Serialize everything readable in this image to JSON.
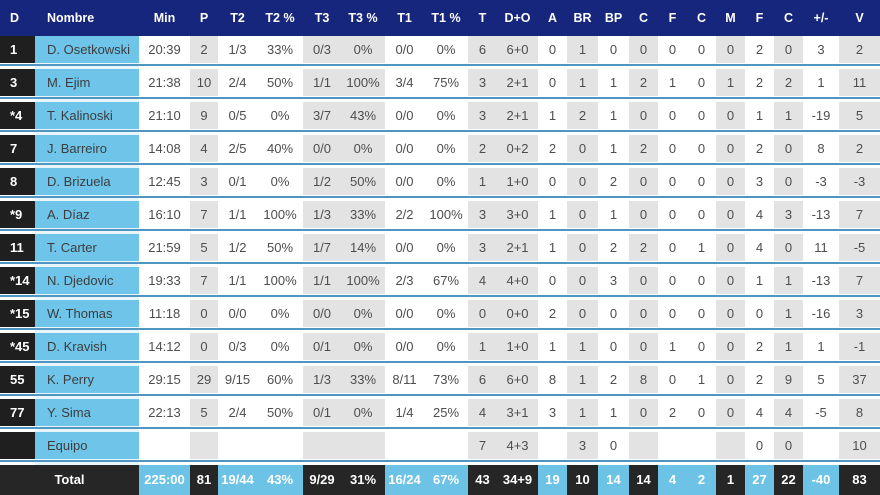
{
  "columns": [
    "D",
    "Nombre",
    "Min",
    "P",
    "T2",
    "T2 %",
    "T3",
    "T3 %",
    "T1",
    "T1 %",
    "T",
    "D+O",
    "A",
    "BR",
    "BP",
    "C",
    "F",
    "C",
    "M",
    "F",
    "C",
    "+/-",
    "V"
  ],
  "rows": [
    {
      "num": "1",
      "name": "D. Osetkowski",
      "stats": [
        "20:39",
        "2",
        "1/3",
        "33%",
        "0/3",
        "0%",
        "0/0",
        "0%",
        "6",
        "6+0",
        "0",
        "1",
        "0",
        "0",
        "0",
        "0",
        "0",
        "2",
        "0",
        "3",
        "2"
      ]
    },
    {
      "num": "3",
      "name": "M. Ejim",
      "stats": [
        "21:38",
        "10",
        "2/4",
        "50%",
        "1/1",
        "100%",
        "3/4",
        "75%",
        "3",
        "2+1",
        "0",
        "1",
        "1",
        "2",
        "1",
        "0",
        "1",
        "2",
        "2",
        "1",
        "11"
      ]
    },
    {
      "num": "*4",
      "name": "T. Kalinoski",
      "stats": [
        "21:10",
        "9",
        "0/5",
        "0%",
        "3/7",
        "43%",
        "0/0",
        "0%",
        "3",
        "2+1",
        "1",
        "2",
        "1",
        "0",
        "0",
        "0",
        "0",
        "1",
        "1",
        "-19",
        "5"
      ]
    },
    {
      "num": "7",
      "name": "J. Barreiro",
      "stats": [
        "14:08",
        "4",
        "2/5",
        "40%",
        "0/0",
        "0%",
        "0/0",
        "0%",
        "2",
        "0+2",
        "2",
        "0",
        "1",
        "2",
        "0",
        "0",
        "0",
        "2",
        "0",
        "8",
        "2"
      ]
    },
    {
      "num": "8",
      "name": "D. Brizuela",
      "stats": [
        "12:45",
        "3",
        "0/1",
        "0%",
        "1/2",
        "50%",
        "0/0",
        "0%",
        "1",
        "1+0",
        "0",
        "0",
        "2",
        "0",
        "0",
        "0",
        "0",
        "3",
        "0",
        "-3",
        "-3"
      ]
    },
    {
      "num": "*9",
      "name": "A. Díaz",
      "stats": [
        "16:10",
        "7",
        "1/1",
        "100%",
        "1/3",
        "33%",
        "2/2",
        "100%",
        "3",
        "3+0",
        "1",
        "0",
        "1",
        "0",
        "0",
        "0",
        "0",
        "4",
        "3",
        "-13",
        "7"
      ]
    },
    {
      "num": "11",
      "name": "T. Carter",
      "stats": [
        "21:59",
        "5",
        "1/2",
        "50%",
        "1/7",
        "14%",
        "0/0",
        "0%",
        "3",
        "2+1",
        "1",
        "0",
        "2",
        "2",
        "0",
        "1",
        "0",
        "4",
        "0",
        "11",
        "-5"
      ]
    },
    {
      "num": "*14",
      "name": "N. Djedovic",
      "stats": [
        "19:33",
        "7",
        "1/1",
        "100%",
        "1/1",
        "100%",
        "2/3",
        "67%",
        "4",
        "4+0",
        "0",
        "0",
        "3",
        "0",
        "0",
        "0",
        "0",
        "1",
        "1",
        "-13",
        "7"
      ]
    },
    {
      "num": "*15",
      "name": "W. Thomas",
      "stats": [
        "11:18",
        "0",
        "0/0",
        "0%",
        "0/0",
        "0%",
        "0/0",
        "0%",
        "0",
        "0+0",
        "2",
        "0",
        "0",
        "0",
        "0",
        "0",
        "0",
        "0",
        "1",
        "-16",
        "3"
      ]
    },
    {
      "num": "*45",
      "name": "D. Kravish",
      "stats": [
        "14:12",
        "0",
        "0/3",
        "0%",
        "0/1",
        "0%",
        "0/0",
        "0%",
        "1",
        "1+0",
        "1",
        "1",
        "0",
        "0",
        "1",
        "0",
        "0",
        "2",
        "1",
        "1",
        "-1"
      ]
    },
    {
      "num": "55",
      "name": "K. Perry",
      "stats": [
        "29:15",
        "29",
        "9/15",
        "60%",
        "1/3",
        "33%",
        "8/11",
        "73%",
        "6",
        "6+0",
        "8",
        "1",
        "2",
        "8",
        "0",
        "1",
        "0",
        "2",
        "9",
        "5",
        "37"
      ]
    },
    {
      "num": "77",
      "name": "Y. Sima",
      "stats": [
        "22:13",
        "5",
        "2/4",
        "50%",
        "0/1",
        "0%",
        "1/4",
        "25%",
        "4",
        "3+1",
        "3",
        "1",
        "1",
        "0",
        "2",
        "0",
        "0",
        "4",
        "4",
        "-5",
        "8"
      ]
    }
  ],
  "equipo": {
    "num": "",
    "name": "Equipo",
    "stats": [
      "",
      "",
      "",
      "",
      "",
      "",
      "",
      "",
      "7",
      "4+3",
      "",
      "3",
      "0",
      "",
      "",
      "",
      "",
      "0",
      "0",
      "",
      "10"
    ]
  },
  "total": {
    "label": "Total",
    "stats": [
      "225:00",
      "81",
      "19/44",
      "43%",
      "9/29",
      "31%",
      "16/24",
      "67%",
      "43",
      "34+9",
      "19",
      "10",
      "14",
      "14",
      "4",
      "2",
      "1",
      "27",
      "22",
      "-40",
      "83"
    ]
  },
  "colors": {
    "header_bg": "#16267d",
    "number_col": "#1f1f1f",
    "name_col": "#6fc5e9",
    "stripe": "#e3e3e3",
    "separator": "#4f97c2",
    "total_dark": "#262626",
    "total_light": "#6cc3e6"
  }
}
